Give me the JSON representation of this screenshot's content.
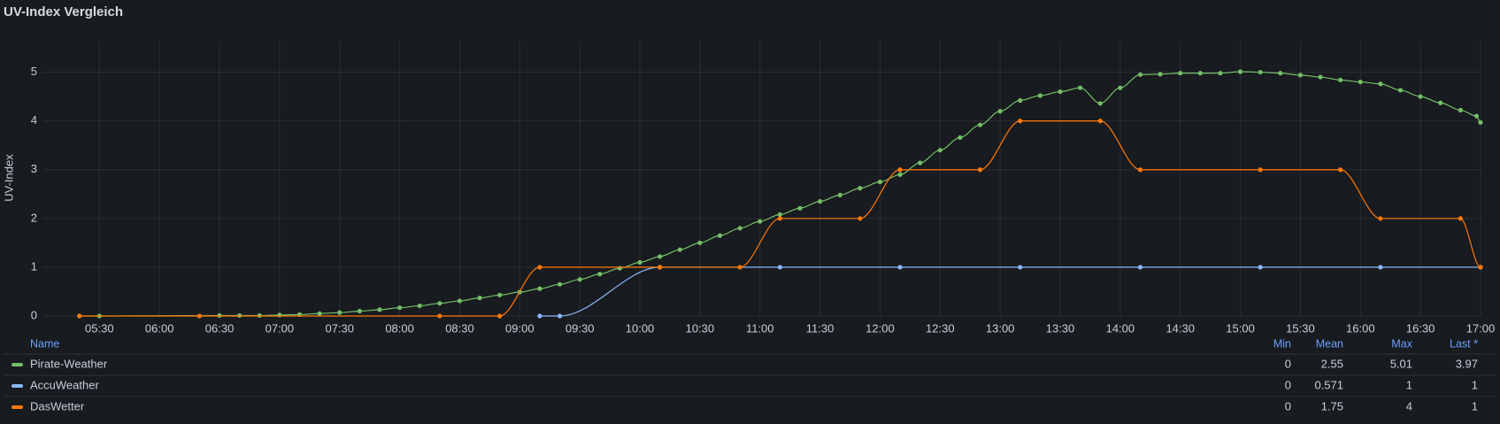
{
  "chart_data": {
    "type": "line",
    "title": "UV-Index Vergleich",
    "y_label": "UV-Index",
    "xlim": [
      "05:02",
      "17:00"
    ],
    "xticks": [
      "05:30",
      "06:00",
      "06:30",
      "07:00",
      "07:30",
      "08:00",
      "08:30",
      "09:00",
      "09:30",
      "10:00",
      "10:30",
      "11:00",
      "11:30",
      "12:00",
      "12:30",
      "13:00",
      "13:30",
      "14:00",
      "14:30",
      "15:00",
      "15:30",
      "16:00",
      "16:30",
      "17:00"
    ],
    "ylim": [
      0,
      5.5
    ],
    "yticks": [
      0,
      1,
      2,
      3,
      4,
      5
    ],
    "grid": true,
    "legend_columns": [
      "Name",
      "Min",
      "Mean",
      "Max",
      "Last *"
    ],
    "series": [
      {
        "name": "Pirate-Weather",
        "color": "#73bf69",
        "x": [
          "05:20",
          "05:30",
          "06:30",
          "06:40",
          "06:50",
          "07:00",
          "07:10",
          "07:20",
          "07:30",
          "07:40",
          "07:50",
          "08:00",
          "08:10",
          "08:20",
          "08:30",
          "08:40",
          "08:50",
          "09:00",
          "09:10",
          "09:20",
          "09:30",
          "09:40",
          "09:50",
          "10:00",
          "10:10",
          "10:20",
          "10:30",
          "10:40",
          "10:50",
          "11:00",
          "11:10",
          "11:20",
          "11:30",
          "11:40",
          "11:50",
          "12:00",
          "12:10",
          "12:20",
          "12:30",
          "12:40",
          "12:50",
          "13:00",
          "13:10",
          "13:20",
          "13:30",
          "13:40",
          "13:50",
          "14:00",
          "14:10",
          "14:20",
          "14:30",
          "14:40",
          "14:50",
          "15:00",
          "15:10",
          "15:20",
          "15:30",
          "15:40",
          "15:50",
          "16:00",
          "16:10",
          "16:20",
          "16:30",
          "16:40",
          "16:50",
          "16:58",
          "17:00"
        ],
        "values": [
          0,
          0,
          0.01,
          0.01,
          0.01,
          0.02,
          0.03,
          0.05,
          0.07,
          0.1,
          0.13,
          0.17,
          0.21,
          0.26,
          0.31,
          0.37,
          0.43,
          0.49,
          0.56,
          0.65,
          0.75,
          0.86,
          0.98,
          1.1,
          1.22,
          1.36,
          1.5,
          1.65,
          1.8,
          1.94,
          2.08,
          2.21,
          2.35,
          2.48,
          2.62,
          2.75,
          2.9,
          3.14,
          3.4,
          3.66,
          3.92,
          4.2,
          4.42,
          4.52,
          4.6,
          4.68,
          4.36,
          4.68,
          4.95,
          4.96,
          4.98,
          4.98,
          4.98,
          5.01,
          5,
          4.98,
          4.94,
          4.9,
          4.84,
          4.8,
          4.76,
          4.63,
          4.5,
          4.37,
          4.22,
          4.1,
          3.97
        ],
        "min": 0,
        "mean": 2.55,
        "max": 5.01,
        "last": 3.97
      },
      {
        "name": "AccuWeather",
        "color": "#8ab8ff",
        "x": [
          "09:10",
          "09:20",
          "10:10",
          "11:10",
          "12:10",
          "13:10",
          "14:10",
          "15:10",
          "16:10",
          "17:00"
        ],
        "values": [
          0,
          0,
          1,
          1,
          1,
          1,
          1,
          1,
          1,
          1
        ],
        "min": 0,
        "mean": 0.571,
        "max": 1,
        "last": 1
      },
      {
        "name": "DasWetter",
        "color": "#ff780a",
        "x": [
          "05:20",
          "06:20",
          "08:20",
          "08:50",
          "09:10",
          "10:10",
          "10:50",
          "11:10",
          "11:50",
          "12:10",
          "12:50",
          "13:10",
          "13:50",
          "14:10",
          "15:10",
          "15:50",
          "16:10",
          "16:50",
          "17:00"
        ],
        "values": [
          0,
          0,
          0,
          0,
          1,
          1,
          1,
          2,
          2,
          3,
          3,
          4,
          4,
          3,
          3,
          3,
          2,
          2,
          1
        ],
        "min": 0,
        "mean": 1.75,
        "max": 4,
        "last": 1
      }
    ]
  }
}
